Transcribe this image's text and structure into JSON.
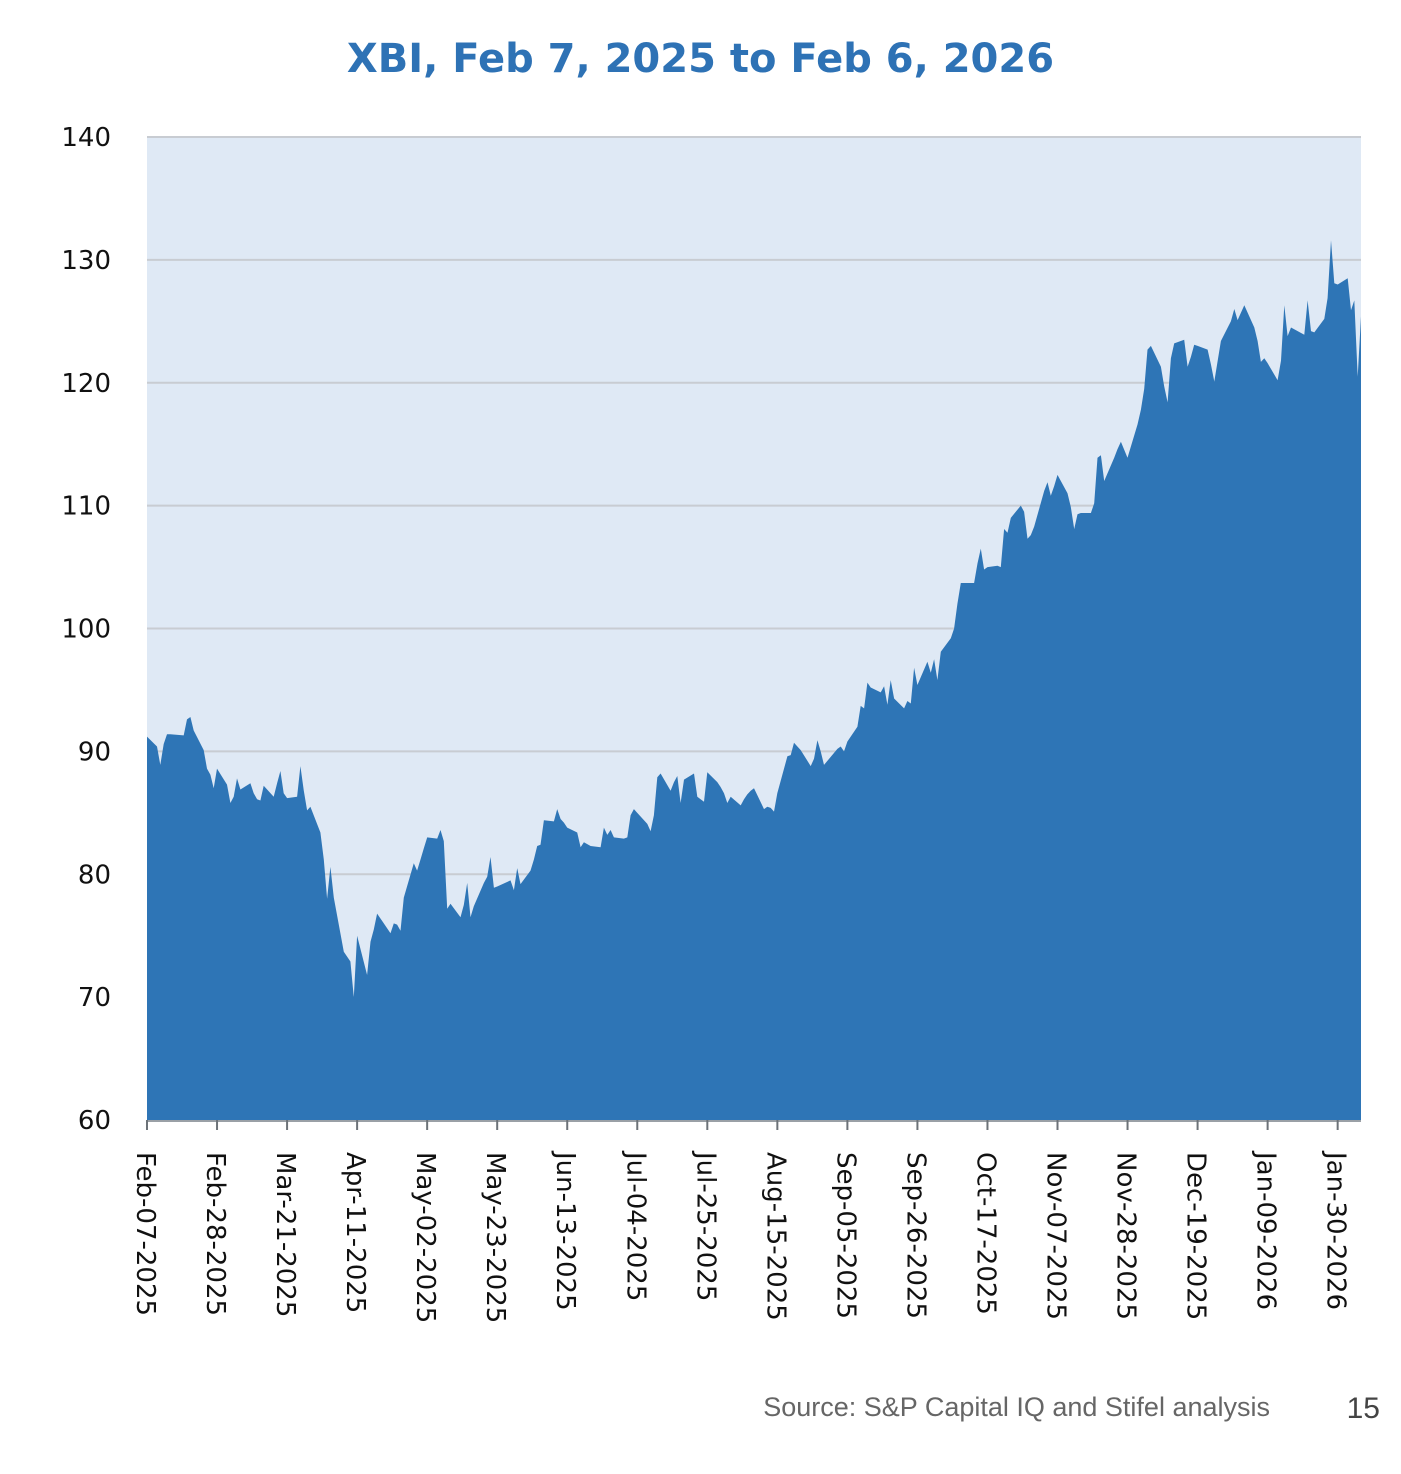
{
  "chart_data": {
    "type": "area",
    "title": "XBI, Feb 7, 2025 to Feb 6, 2026",
    "xlabel": "",
    "ylabel": "",
    "ylim": [
      60,
      140
    ],
    "yticks": [
      60,
      70,
      80,
      90,
      100,
      110,
      120,
      130,
      140
    ],
    "x_ticks": [
      "Feb-07-2025",
      "Feb-28-2025",
      "Mar-21-2025",
      "Apr-11-2025",
      "May-02-2025",
      "May-23-2025",
      "Jun-13-2025",
      "Jul-04-2025",
      "Jul-25-2025",
      "Aug-15-2025",
      "Sep-05-2025",
      "Sep-26-2025",
      "Oct-17-2025",
      "Nov-07-2025",
      "Nov-28-2025",
      "Dec-19-2025",
      "Jan-09-2026",
      "Jan-30-2026"
    ],
    "x_range": [
      "Feb-07-2025",
      "Feb-06-2026"
    ],
    "grid": true,
    "legend": "none",
    "colors": {
      "fill": "#2e75b6",
      "plot_background": "#dfe9f5",
      "gridline": "#c8ccd2",
      "title": "#2e72b5"
    },
    "series": [
      {
        "points": [
          [
            "Feb-07-2025",
            91.2
          ],
          [
            "Feb-10-2025",
            90.4
          ],
          [
            "Feb-11-2025",
            88.9
          ],
          [
            "Feb-12-2025",
            90.6
          ],
          [
            "Feb-13-2025",
            91.4
          ],
          [
            "Feb-14-2025",
            91.4
          ],
          [
            "Feb-18-2025",
            91.3
          ],
          [
            "Feb-19-2025",
            92.6
          ],
          [
            "Feb-20-2025",
            92.8
          ],
          [
            "Feb-21-2025",
            91.7
          ],
          [
            "Feb-24-2025",
            90.1
          ],
          [
            "Feb-25-2025",
            88.6
          ],
          [
            "Feb-26-2025",
            88.1
          ],
          [
            "Feb-27-2025",
            87.0
          ],
          [
            "Feb-28-2025",
            88.6
          ],
          [
            "Mar-03-2025",
            87.3
          ],
          [
            "Mar-04-2025",
            85.8
          ],
          [
            "Mar-05-2025",
            86.3
          ],
          [
            "Mar-06-2025",
            87.8
          ],
          [
            "Mar-07-2025",
            86.9
          ],
          [
            "Mar-10-2025",
            87.4
          ],
          [
            "Mar-11-2025",
            86.6
          ],
          [
            "Mar-12-2025",
            86.1
          ],
          [
            "Mar-13-2025",
            86.0
          ],
          [
            "Mar-14-2025",
            87.2
          ],
          [
            "Mar-17-2025",
            86.3
          ],
          [
            "Mar-18-2025",
            87.4
          ],
          [
            "Mar-19-2025",
            88.4
          ],
          [
            "Mar-20-2025",
            86.6
          ],
          [
            "Mar-21-2025",
            86.2
          ],
          [
            "Mar-24-2025",
            86.3
          ],
          [
            "Mar-25-2025",
            88.8
          ],
          [
            "Mar-26-2025",
            86.8
          ],
          [
            "Mar-27-2025",
            85.2
          ],
          [
            "Mar-28-2025",
            85.5
          ],
          [
            "Mar-31-2025",
            83.4
          ],
          [
            "Apr-01-2025",
            81.2
          ],
          [
            "Apr-02-2025",
            78.0
          ],
          [
            "Apr-03-2025",
            80.6
          ],
          [
            "Apr-04-2025",
            78.1
          ],
          [
            "Apr-07-2025",
            73.7
          ],
          [
            "Apr-08-2025",
            73.3
          ],
          [
            "Apr-09-2025",
            72.9
          ],
          [
            "Apr-10-2025",
            70.0
          ],
          [
            "Apr-11-2025",
            75.0
          ],
          [
            "Apr-14-2025",
            71.8
          ],
          [
            "Apr-15-2025",
            74.5
          ],
          [
            "Apr-16-2025",
            75.5
          ],
          [
            "Apr-17-2025",
            76.8
          ],
          [
            "Apr-21-2025",
            75.2
          ],
          [
            "Apr-22-2025",
            76.0
          ],
          [
            "Apr-23-2025",
            75.9
          ],
          [
            "Apr-24-2025",
            75.4
          ],
          [
            "Apr-25-2025",
            78.1
          ],
          [
            "Apr-28-2025",
            80.9
          ],
          [
            "Apr-29-2025",
            80.3
          ],
          [
            "Apr-30-2025",
            81.2
          ],
          [
            "May-01-2025",
            82.1
          ],
          [
            "May-02-2025",
            83.0
          ],
          [
            "May-05-2025",
            82.9
          ],
          [
            "May-06-2025",
            83.6
          ],
          [
            "May-07-2025",
            82.7
          ],
          [
            "May-08-2025",
            77.2
          ],
          [
            "May-09-2025",
            77.6
          ],
          [
            "May-12-2025",
            76.5
          ],
          [
            "May-13-2025",
            77.5
          ],
          [
            "May-14-2025",
            79.3
          ],
          [
            "May-15-2025",
            76.5
          ],
          [
            "May-16-2025",
            77.4
          ],
          [
            "May-19-2025",
            79.3
          ],
          [
            "May-20-2025",
            79.8
          ],
          [
            "May-21-2025",
            81.4
          ],
          [
            "May-22-2025",
            78.9
          ],
          [
            "May-23-2025",
            79.0
          ],
          [
            "May-27-2025",
            79.5
          ],
          [
            "May-28-2025",
            78.7
          ],
          [
            "May-29-2025",
            80.5
          ],
          [
            "May-30-2025",
            79.2
          ],
          [
            "Jun-02-2025",
            80.3
          ],
          [
            "Jun-03-2025",
            81.2
          ],
          [
            "Jun-04-2025",
            82.3
          ],
          [
            "Jun-05-2025",
            82.4
          ],
          [
            "Jun-06-2025",
            84.4
          ],
          [
            "Jun-09-2025",
            84.3
          ],
          [
            "Jun-10-2025",
            85.3
          ],
          [
            "Jun-11-2025",
            84.5
          ],
          [
            "Jun-12-2025",
            84.2
          ],
          [
            "Jun-13-2025",
            83.8
          ],
          [
            "Jun-16-2025",
            83.4
          ],
          [
            "Jun-17-2025",
            82.2
          ],
          [
            "Jun-18-2025",
            82.6
          ],
          [
            "Jun-20-2025",
            82.3
          ],
          [
            "Jun-23-2025",
            82.2
          ],
          [
            "Jun-24-2025",
            83.8
          ],
          [
            "Jun-25-2025",
            83.2
          ],
          [
            "Jun-26-2025",
            83.6
          ],
          [
            "Jun-27-2025",
            83.0
          ],
          [
            "Jun-30-2025",
            82.9
          ],
          [
            "Jul-01-2025",
            83.0
          ],
          [
            "Jul-02-2025",
            84.8
          ],
          [
            "Jul-03-2025",
            85.3
          ],
          [
            "Jul-07-2025",
            84.1
          ],
          [
            "Jul-08-2025",
            83.5
          ],
          [
            "Jul-09-2025",
            84.8
          ],
          [
            "Jul-10-2025",
            87.9
          ],
          [
            "Jul-11-2025",
            88.2
          ],
          [
            "Jul-14-2025",
            86.8
          ],
          [
            "Jul-15-2025",
            87.5
          ],
          [
            "Jul-16-2025",
            88.0
          ],
          [
            "Jul-17-2025",
            85.8
          ],
          [
            "Jul-18-2025",
            87.7
          ],
          [
            "Jul-21-2025",
            88.2
          ],
          [
            "Jul-22-2025",
            86.3
          ],
          [
            "Jul-23-2025",
            86.1
          ],
          [
            "Jul-24-2025",
            85.9
          ],
          [
            "Jul-25-2025",
            88.3
          ],
          [
            "Jul-28-2025",
            87.5
          ],
          [
            "Jul-29-2025",
            87.1
          ],
          [
            "Jul-30-2025",
            86.6
          ],
          [
            "Jul-31-2025",
            85.8
          ],
          [
            "Aug-01-2025",
            86.3
          ],
          [
            "Aug-04-2025",
            85.6
          ],
          [
            "Aug-05-2025",
            86.1
          ],
          [
            "Aug-06-2025",
            86.5
          ],
          [
            "Aug-07-2025",
            86.8
          ],
          [
            "Aug-08-2025",
            87.0
          ],
          [
            "Aug-11-2025",
            85.3
          ],
          [
            "Aug-12-2025",
            85.5
          ],
          [
            "Aug-13-2025",
            85.4
          ],
          [
            "Aug-14-2025",
            85.1
          ],
          [
            "Aug-15-2025",
            86.6
          ],
          [
            "Aug-18-2025",
            89.6
          ],
          [
            "Aug-19-2025",
            89.7
          ],
          [
            "Aug-20-2025",
            90.7
          ],
          [
            "Aug-21-2025",
            90.4
          ],
          [
            "Aug-22-2025",
            90.1
          ],
          [
            "Aug-25-2025",
            88.8
          ],
          [
            "Aug-26-2025",
            89.4
          ],
          [
            "Aug-27-2025",
            90.9
          ],
          [
            "Aug-28-2025",
            90.0
          ],
          [
            "Aug-29-2025",
            88.9
          ],
          [
            "Sep-02-2025",
            90.2
          ],
          [
            "Sep-03-2025",
            90.4
          ],
          [
            "Sep-04-2025",
            90.0
          ],
          [
            "Sep-05-2025",
            90.8
          ],
          [
            "Sep-08-2025",
            92.0
          ],
          [
            "Sep-09-2025",
            93.7
          ],
          [
            "Sep-10-2025",
            93.5
          ],
          [
            "Sep-11-2025",
            95.6
          ],
          [
            "Sep-12-2025",
            95.2
          ],
          [
            "Sep-15-2025",
            94.8
          ],
          [
            "Sep-16-2025",
            95.3
          ],
          [
            "Sep-17-2025",
            93.8
          ],
          [
            "Sep-18-2025",
            95.8
          ],
          [
            "Sep-19-2025",
            94.3
          ],
          [
            "Sep-22-2025",
            93.5
          ],
          [
            "Sep-23-2025",
            94.1
          ],
          [
            "Sep-24-2025",
            93.9
          ],
          [
            "Sep-25-2025",
            96.8
          ],
          [
            "Sep-26-2025",
            95.4
          ],
          [
            "Sep-29-2025",
            97.3
          ],
          [
            "Sep-30-2025",
            96.4
          ],
          [
            "Oct-01-2025",
            97.5
          ],
          [
            "Oct-02-2025",
            95.8
          ],
          [
            "Oct-03-2025",
            98.1
          ],
          [
            "Oct-06-2025",
            99.2
          ],
          [
            "Oct-07-2025",
            100.0
          ],
          [
            "Oct-08-2025",
            102.0
          ],
          [
            "Oct-09-2025",
            103.7
          ],
          [
            "Oct-10-2025",
            103.7
          ],
          [
            "Oct-13-2025",
            103.7
          ],
          [
            "Oct-14-2025",
            105.3
          ],
          [
            "Oct-15-2025",
            106.5
          ],
          [
            "Oct-16-2025",
            104.8
          ],
          [
            "Oct-17-2025",
            105.0
          ],
          [
            "Oct-20-2025",
            105.1
          ],
          [
            "Oct-21-2025",
            105.0
          ],
          [
            "Oct-22-2025",
            108.1
          ],
          [
            "Oct-23-2025",
            107.8
          ],
          [
            "Oct-24-2025",
            109.0
          ],
          [
            "Oct-27-2025",
            110.0
          ],
          [
            "Oct-28-2025",
            109.5
          ],
          [
            "Oct-29-2025",
            107.3
          ],
          [
            "Oct-30-2025",
            107.6
          ],
          [
            "Oct-31-2025",
            108.3
          ],
          [
            "Nov-03-2025",
            111.2
          ],
          [
            "Nov-04-2025",
            111.9
          ],
          [
            "Nov-05-2025",
            110.8
          ],
          [
            "Nov-06-2025",
            111.6
          ],
          [
            "Nov-07-2025",
            112.5
          ],
          [
            "Nov-10-2025",
            111.0
          ],
          [
            "Nov-11-2025",
            109.9
          ],
          [
            "Nov-12-2025",
            108.1
          ],
          [
            "Nov-13-2025",
            109.3
          ],
          [
            "Nov-14-2025",
            109.4
          ],
          [
            "Nov-17-2025",
            109.4
          ],
          [
            "Nov-18-2025",
            110.2
          ],
          [
            "Nov-19-2025",
            113.9
          ],
          [
            "Nov-20-2025",
            114.1
          ],
          [
            "Nov-21-2025",
            112.0
          ],
          [
            "Nov-24-2025",
            113.9
          ],
          [
            "Nov-25-2025",
            114.6
          ],
          [
            "Nov-26-2025",
            115.2
          ],
          [
            "Nov-28-2025",
            113.9
          ],
          [
            "Dec-01-2025",
            116.6
          ],
          [
            "Dec-02-2025",
            117.8
          ],
          [
            "Dec-03-2025",
            119.5
          ],
          [
            "Dec-04-2025",
            122.7
          ],
          [
            "Dec-05-2025",
            123.0
          ],
          [
            "Dec-08-2025",
            121.3
          ],
          [
            "Dec-09-2025",
            119.7
          ],
          [
            "Dec-10-2025",
            118.4
          ],
          [
            "Dec-11-2025",
            122.0
          ],
          [
            "Dec-12-2025",
            123.2
          ],
          [
            "Dec-15-2025",
            123.5
          ],
          [
            "Dec-16-2025",
            121.3
          ],
          [
            "Dec-17-2025",
            122.1
          ],
          [
            "Dec-18-2025",
            123.1
          ],
          [
            "Dec-19-2025",
            123.0
          ],
          [
            "Dec-22-2025",
            122.7
          ],
          [
            "Dec-23-2025",
            121.5
          ],
          [
            "Dec-24-2025",
            120.1
          ],
          [
            "Dec-26-2025",
            123.4
          ],
          [
            "Dec-29-2025",
            125.0
          ],
          [
            "Dec-30-2025",
            126.0
          ],
          [
            "Dec-31-2025",
            125.1
          ],
          [
            "Jan-02-2026",
            126.3
          ],
          [
            "Jan-05-2026",
            124.5
          ],
          [
            "Jan-06-2026",
            123.4
          ],
          [
            "Jan-07-2026",
            121.7
          ],
          [
            "Jan-08-2026",
            122.0
          ],
          [
            "Jan-09-2026",
            121.6
          ],
          [
            "Jan-12-2026",
            120.2
          ],
          [
            "Jan-13-2026",
            121.8
          ],
          [
            "Jan-14-2026",
            126.3
          ],
          [
            "Jan-15-2026",
            123.8
          ],
          [
            "Jan-16-2026",
            124.5
          ],
          [
            "Jan-20-2026",
            123.9
          ],
          [
            "Jan-21-2026",
            126.7
          ],
          [
            "Jan-22-2026",
            124.2
          ],
          [
            "Jan-23-2026",
            124.1
          ],
          [
            "Jan-26-2026",
            125.2
          ],
          [
            "Jan-27-2026",
            126.9
          ],
          [
            "Jan-28-2026",
            131.6
          ],
          [
            "Jan-29-2026",
            128.1
          ],
          [
            "Jan-30-2026",
            128.0
          ],
          [
            "Feb-02-2026",
            128.5
          ],
          [
            "Feb-03-2026",
            125.9
          ],
          [
            "Feb-04-2026",
            126.7
          ],
          [
            "Feb-05-2026",
            120.5
          ],
          [
            "Feb-06-2026",
            125.4
          ]
        ]
      }
    ]
  },
  "footer": {
    "source": "Source: S&P Capital IQ and Stifel analysis",
    "page_number": "15"
  }
}
